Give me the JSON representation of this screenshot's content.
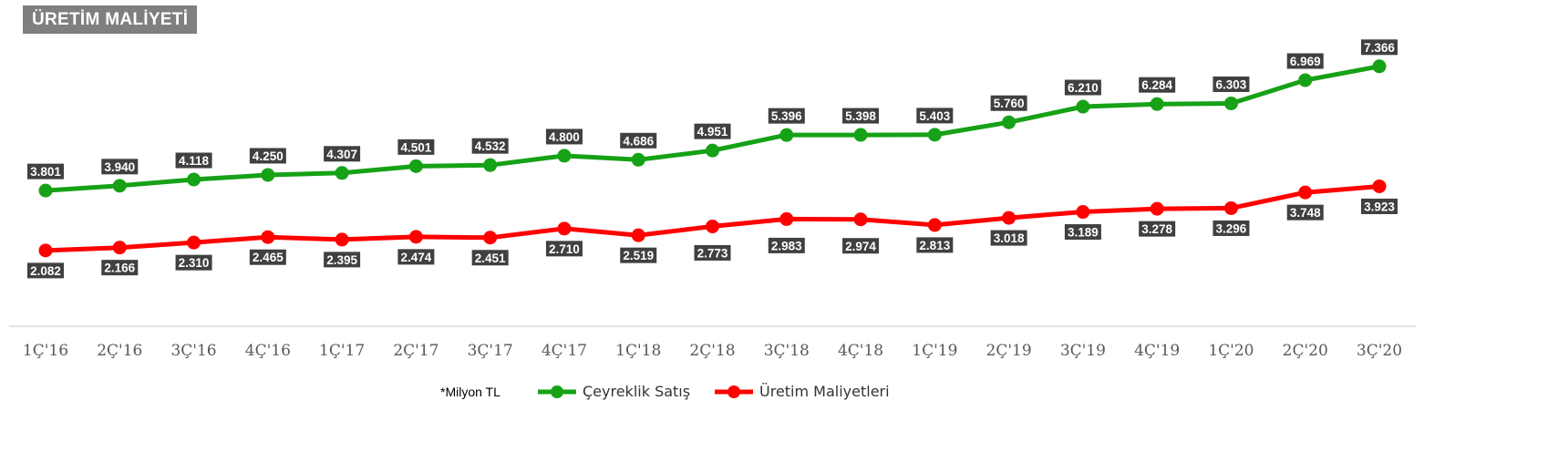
{
  "title": "ÜRETİM MALİYETİ",
  "note": "*Milyon TL",
  "colors": {
    "series1": "#16a116",
    "series2": "#ff0000",
    "label_bg": "#404040",
    "axis": "#d9d9d9"
  },
  "chart_data": {
    "type": "line",
    "categories": [
      "1Ç'16",
      "2Ç'16",
      "3Ç'16",
      "4Ç'16",
      "1Ç'17",
      "2Ç'17",
      "3Ç'17",
      "4Ç'17",
      "1Ç'18",
      "2Ç'18",
      "3Ç'18",
      "4Ç'18",
      "1Ç'19",
      "2Ç'19",
      "3Ç'19",
      "4Ç'19",
      "1Ç'20",
      "2Ç'20",
      "3Ç'20"
    ],
    "series": [
      {
        "name": "Çeyreklik Satış",
        "values": [
          3801,
          3940,
          4118,
          4250,
          4307,
          4501,
          4532,
          4800,
          4686,
          4951,
          5396,
          5398,
          5403,
          5760,
          6210,
          6284,
          6303,
          6969,
          7366
        ],
        "labels": [
          "3.801",
          "3.940",
          "4.118",
          "4.250",
          "4.307",
          "4.501",
          "4.532",
          "4.800",
          "4.686",
          "4.951",
          "5.396",
          "5.398",
          "5.403",
          "5.760",
          "6.210",
          "6.284",
          "6.303",
          "6.969",
          "7.366"
        ]
      },
      {
        "name": "Üretim Maliyetleri",
        "values": [
          2082,
          2166,
          2310,
          2465,
          2395,
          2474,
          2451,
          2710,
          2519,
          2773,
          2983,
          2974,
          2813,
          3018,
          3189,
          3278,
          3296,
          3748,
          3923
        ],
        "labels": [
          "2.082",
          "2.166",
          "2.310",
          "2.465",
          "2.395",
          "2.474",
          "2.451",
          "2.710",
          "2.519",
          "2.773",
          "2.983",
          "2.974",
          "2.813",
          "3.018",
          "3.189",
          "3.278",
          "3.296",
          "3.748",
          "3.923"
        ]
      }
    ],
    "legend_position": "bottom",
    "grid": false
  }
}
